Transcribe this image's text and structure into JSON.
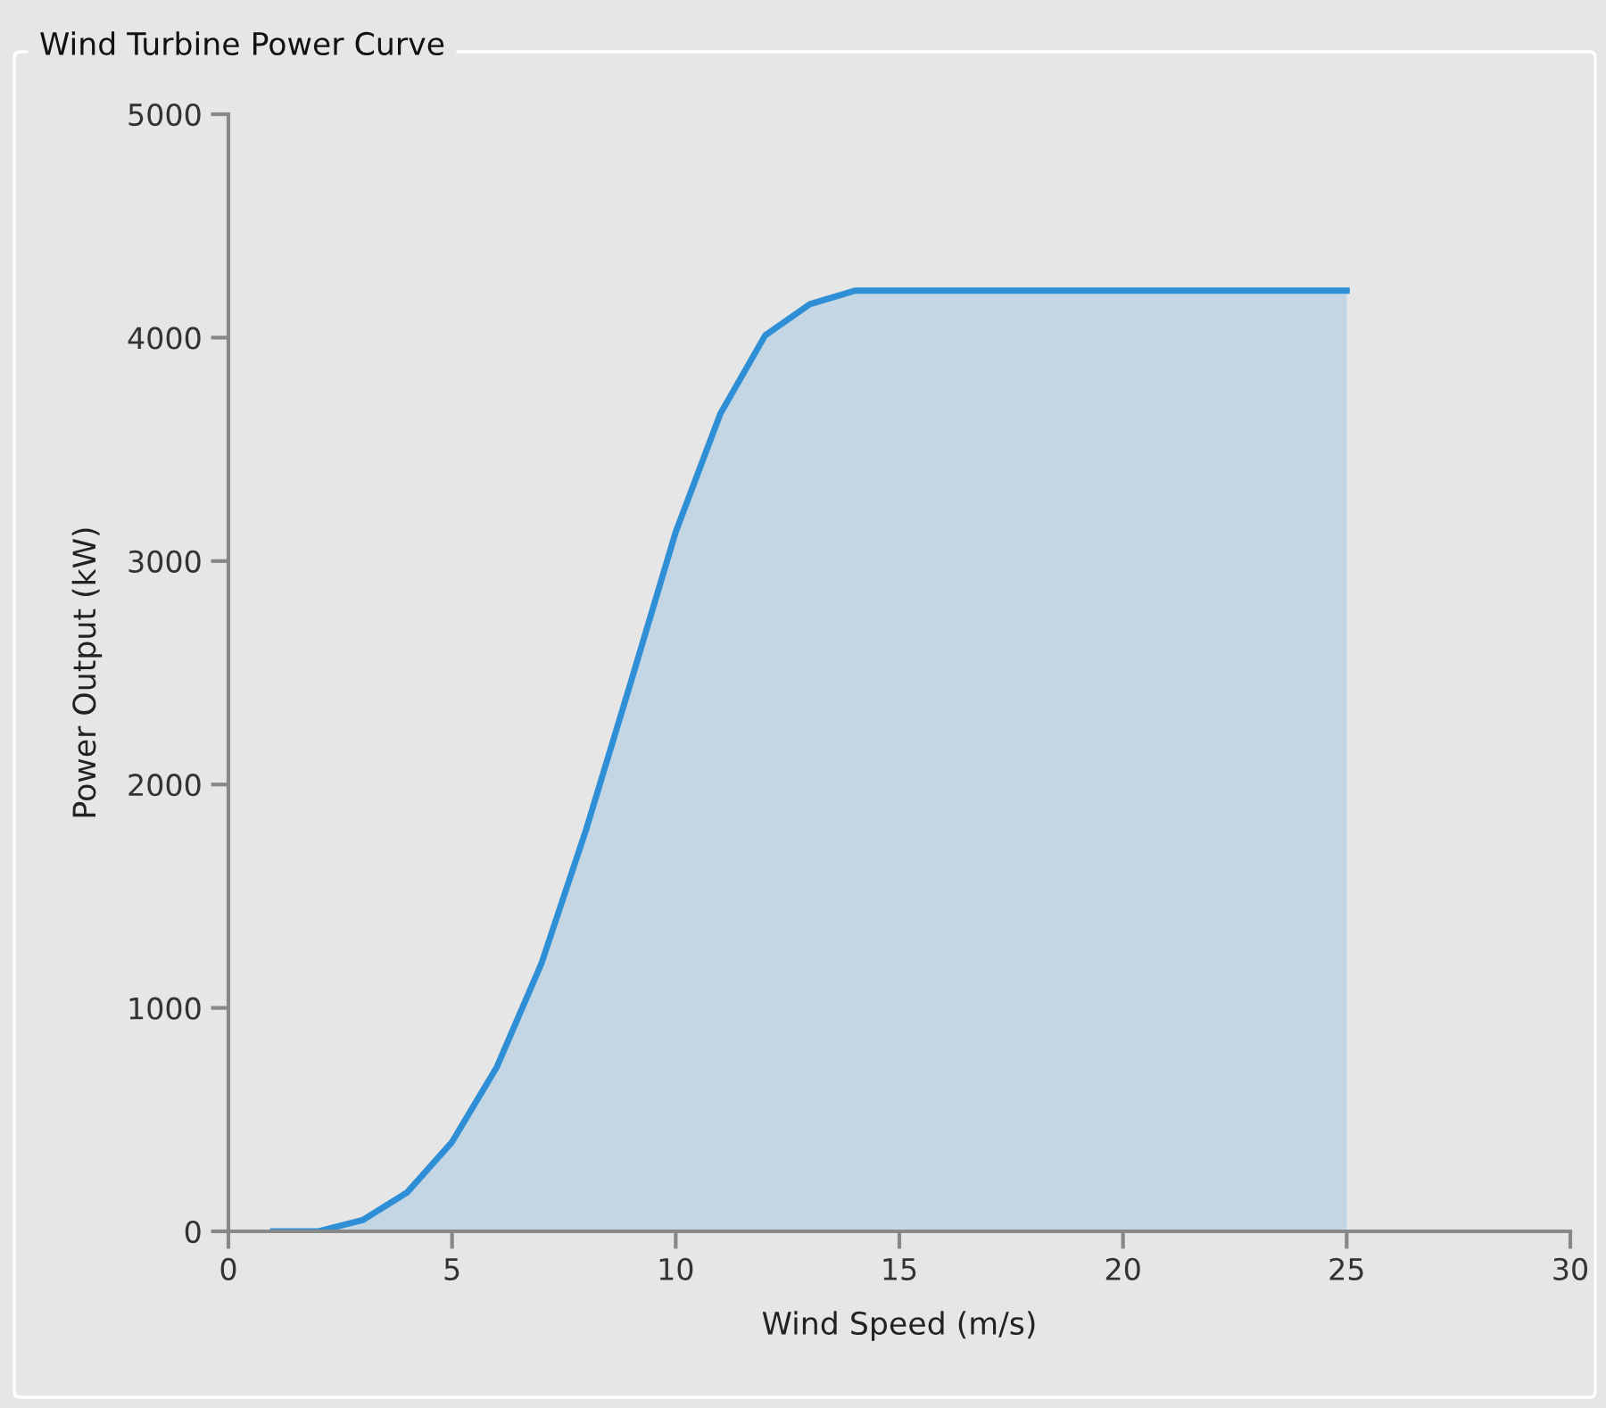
{
  "chart_data": {
    "type": "area",
    "title": "Wind Turbine Power Curve",
    "xlabel": "Wind Speed (m/s)",
    "ylabel": "Power Output (kW)",
    "x": [
      1,
      2,
      3,
      4,
      5,
      6,
      7,
      8,
      9,
      10,
      11,
      12,
      13,
      14,
      15,
      16,
      17,
      18,
      19,
      20,
      21,
      22,
      23,
      24,
      25
    ],
    "series": [
      {
        "color": "#2f8fd6",
        "values": [
          0,
          0,
          50,
          175,
          400,
          735,
          1200,
          1800,
          2460,
          3130,
          3660,
          4010,
          4150,
          4210,
          4210,
          4210,
          4210,
          4210,
          4210,
          4210,
          4210,
          4210,
          4210,
          4210,
          4210
        ]
      }
    ],
    "xlim": [
      0,
      30
    ],
    "xticks": [
      0,
      5,
      10,
      15,
      20,
      25,
      30
    ],
    "ylim": [
      0,
      5000
    ],
    "yticks": [
      0,
      1000,
      2000,
      3000,
      4000,
      5000
    ],
    "grid": false
  }
}
